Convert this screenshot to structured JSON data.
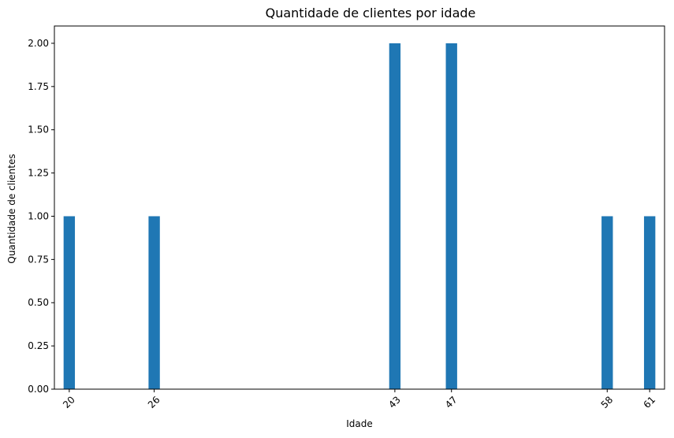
{
  "chart_data": {
    "type": "bar",
    "title": "Quantidade de clientes por idade",
    "xlabel": "Idade",
    "ylabel": "Quantidade de clientes",
    "x": [
      20,
      26,
      43,
      47,
      58,
      61
    ],
    "x_tick_labels": [
      "20",
      "26",
      "43",
      "47",
      "58",
      "61"
    ],
    "values": [
      1,
      1,
      2,
      2,
      1,
      1
    ],
    "bar_width": 0.8,
    "xlim": [
      18.95,
      62.05
    ],
    "ylim": [
      0,
      2.1
    ],
    "y_ticks": [
      0.0,
      0.25,
      0.5,
      0.75,
      1.0,
      1.25,
      1.5,
      1.75,
      2.0
    ],
    "y_tick_labels": [
      "0.00",
      "0.25",
      "0.50",
      "0.75",
      "1.00",
      "1.25",
      "1.50",
      "1.75",
      "2.00"
    ],
    "x_tick_rotation_deg": -45,
    "grid": false,
    "legend": "none",
    "bar_color": "#1f77b4"
  }
}
